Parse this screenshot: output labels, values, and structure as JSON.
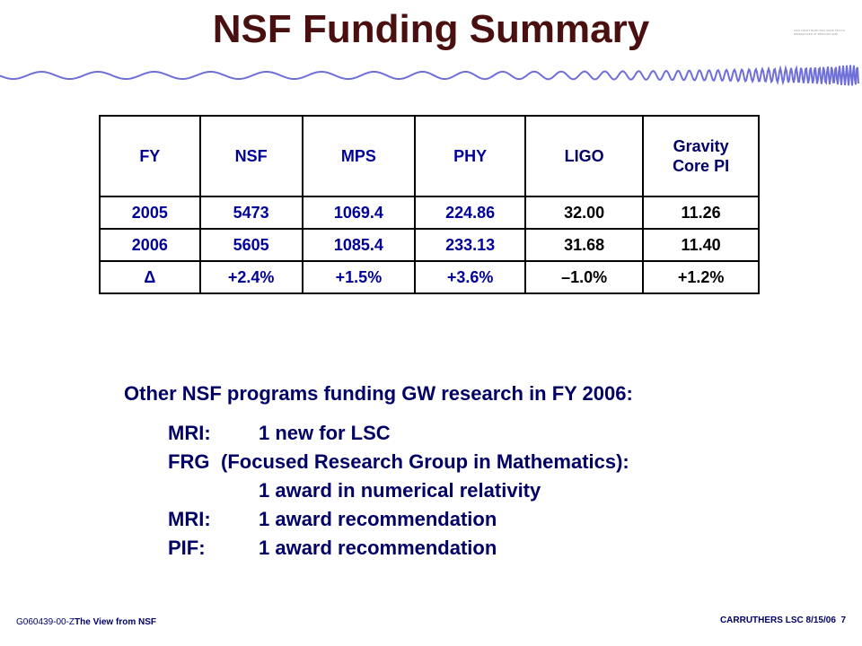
{
  "slide": {
    "title": "NSF Funding Summary",
    "corner_note": "LIGO DRAFT NOTE THIS SLIDE TEXT IS REPRODUCED AT REDUCED SIZE"
  },
  "table": {
    "headers": [
      "FY",
      "NSF",
      "MPS",
      "PHY",
      "LIGO",
      "Gravity Core PI"
    ],
    "header_core_lines": [
      "Gravity",
      "Core PI"
    ],
    "rows": [
      [
        "2005",
        "5473",
        "1069.4",
        "224.86",
        "32.00",
        "11.26"
      ],
      [
        "2006",
        "5605",
        "1085.4",
        "233.13",
        "31.68",
        "11.40"
      ],
      [
        "Δ",
        "+2.4%",
        "+1.5%",
        "+3.6%",
        "–1.0%",
        "+1.2%"
      ]
    ]
  },
  "other": {
    "heading": "Other NSF programs funding GW research in FY 2006:",
    "items": [
      {
        "label": "MRI:",
        "desc": "1 new for LSC"
      },
      {
        "label": "FRG",
        "desc": "(Focused Research Group in Mathematics):"
      },
      {
        "label": "",
        "desc": "1 award in numerical relativity"
      },
      {
        "label": "MRI:",
        "desc": "1 award recommendation"
      },
      {
        "label": "PIF:",
        "desc": "1 award recommendation"
      }
    ]
  },
  "footer": {
    "left_code": "G060439-00-Z",
    "left_title": "The View from NSF",
    "right": "CARRUTHERS LSC 8/15/06",
    "page": "7"
  },
  "colors": {
    "title": "#4a1010",
    "text": "#000066",
    "table_text": "#000099",
    "wave": "#6f6fd8"
  }
}
